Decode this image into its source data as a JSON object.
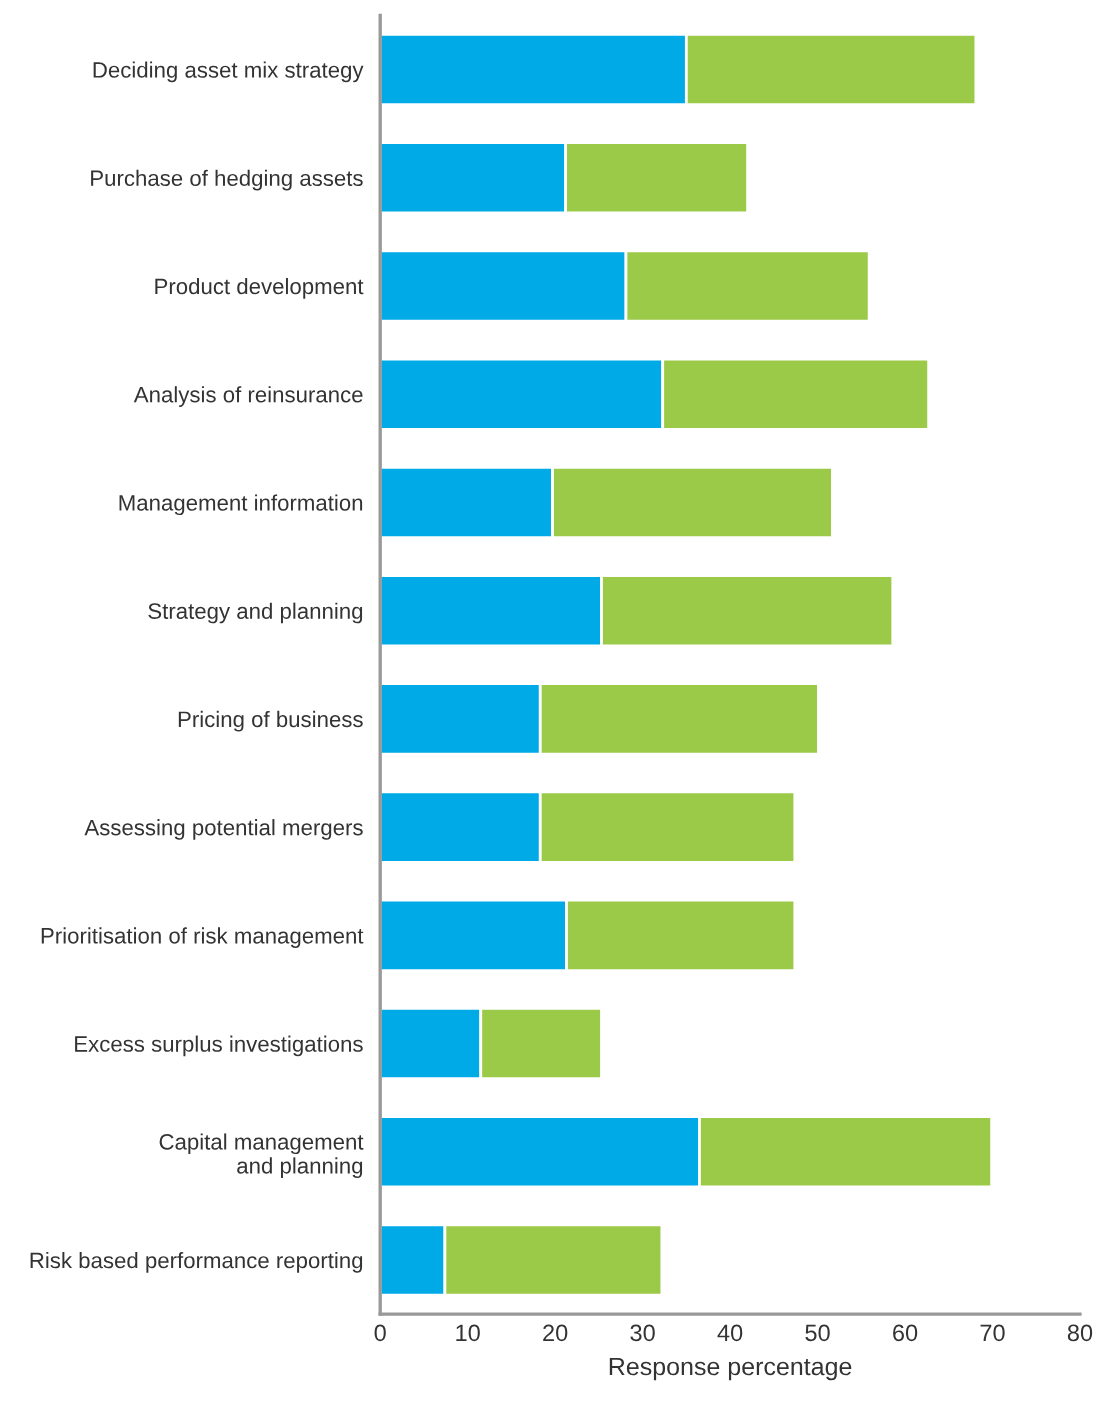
{
  "chart_data": {
    "type": "bar",
    "orientation": "horizontal",
    "stacked": true,
    "xlabel": "Response percentage",
    "categories": [
      "Deciding asset mix strategy",
      "Purchase of hedging assets",
      "Product development",
      "Analysis of reinsurance",
      "Management information",
      "Strategy and planning",
      "Pricing of business",
      "Assessing potential mergers",
      "Prioritisation of risk management",
      "Excess surplus investigations",
      "Capital management\nand planning",
      "Risk based performance reporting"
    ],
    "series": [
      {
        "color": "#00aae6",
        "values": [
          35.0,
          21.2,
          28.1,
          32.3,
          19.7,
          25.3,
          18.3,
          18.3,
          21.3,
          11.5,
          36.5,
          7.4
        ]
      },
      {
        "color": "#9bc948",
        "values": [
          33.1,
          20.8,
          27.8,
          30.4,
          32.0,
          33.3,
          31.8,
          29.1,
          26.1,
          13.8,
          33.4,
          24.8
        ]
      }
    ],
    "xlim": [
      0,
      80
    ],
    "xticks": [
      0,
      10,
      20,
      30,
      40,
      50,
      60,
      70,
      80
    ],
    "grid": false,
    "legend": false
  }
}
